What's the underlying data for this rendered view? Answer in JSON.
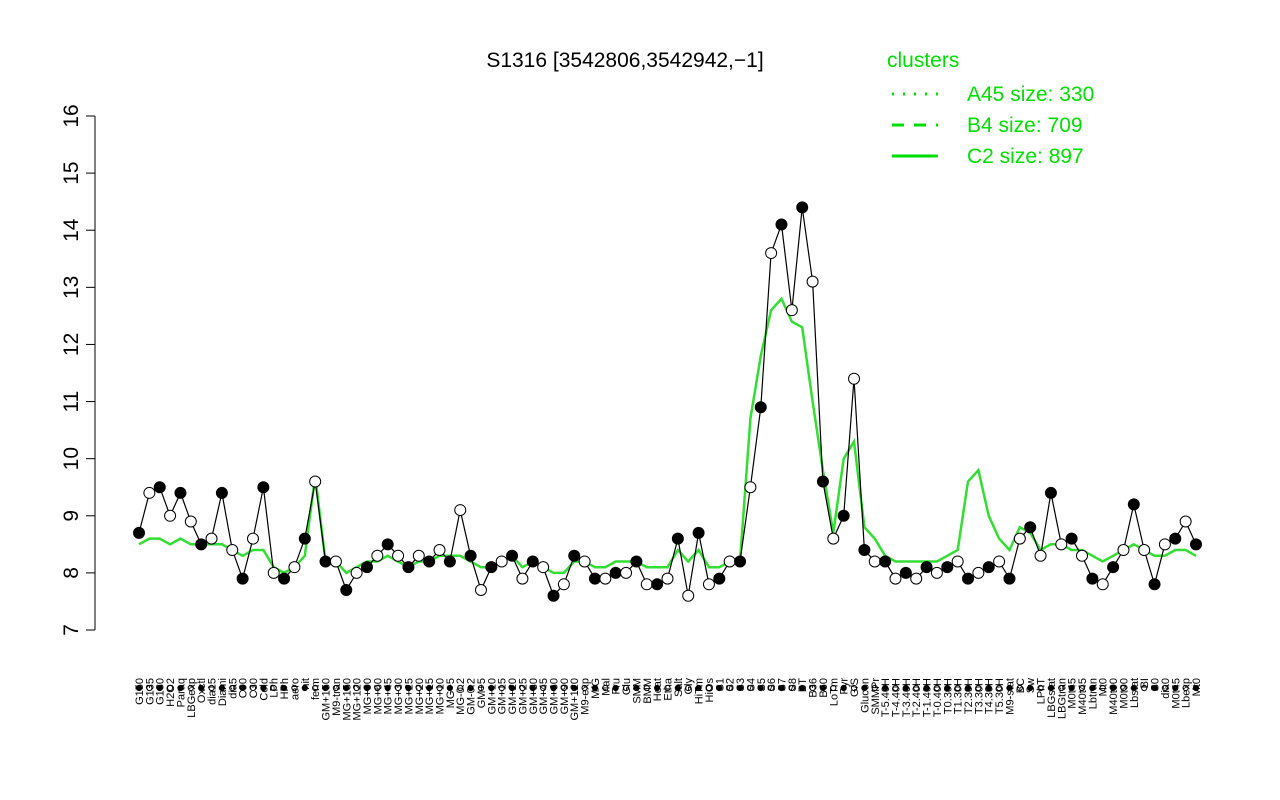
{
  "chart_data": {
    "type": "line",
    "title": "S1316 [3542806,3542942,−1]",
    "xlabel": "",
    "ylabel": "",
    "ylim": [
      7,
      16
    ],
    "y_ticks": [
      7,
      8,
      9,
      10,
      11,
      12,
      13,
      14,
      15,
      16
    ],
    "x_tick_labels": [
      "G150",
      "G135",
      "G180",
      "H2O2",
      "Paraq",
      "LBGexp",
      "Oxctl",
      "dia15",
      "Diami",
      "dia5",
      "C90",
      "C30",
      "Cold",
      "LPh",
      "HPh",
      "aero",
      "nit",
      "ferm",
      "GM+150",
      "M9-tran",
      "MG+150",
      "MG+120",
      "MG+90",
      "MG+60",
      "MG+45",
      "MG+30",
      "MG+25",
      "MG+20",
      "MG+15",
      "MG+10",
      "MG+5",
      "MG-0.2",
      "GM-0.2",
      "GM+5",
      "GM+10",
      "GM+15",
      "GM+20",
      "GM+25",
      "GM+30",
      "GM+45",
      "GM+60",
      "GM+90",
      "GM+120",
      "M9-exp",
      "M/G",
      "Mal",
      "Fru",
      "Glu",
      "SMM",
      "BMM",
      "Heat",
      "Etha",
      "Salt",
      "Gly",
      "HiTm",
      "HiOs",
      "S1",
      "S2",
      "S3",
      "S4",
      "S5",
      "S6",
      "S7",
      "S8",
      "BT",
      "B36",
      "B60",
      "LoTm",
      "Pyr",
      "G/S",
      "Glucon",
      "SMMPr",
      "T-5.40H",
      "T-4.40H",
      "T-3.40H",
      "T-2.40H",
      "T-1.40H",
      "T-0.40H",
      "T0.30H",
      "T1.30H",
      "T2.30H",
      "T3.30H",
      "T4.30H",
      "T5.30H",
      "M9-stat",
      "BC",
      "Sw",
      "LPhT",
      "LBGstat",
      "LBGtran",
      "M0t45",
      "M40t45",
      "Lbtran",
      "Mt0",
      "M40t90",
      "M0t90",
      "Lbstat",
      "BI",
      "S0",
      "dia0",
      "M0t45",
      "Lbexp",
      "Mt0"
    ],
    "legend": {
      "title": "clusters",
      "position": "top-right",
      "color": "#00dd00",
      "entries": [
        {
          "label": "A45 size: 330",
          "style": "dotted"
        },
        {
          "label": "B4 size: 709",
          "style": "dashed"
        },
        {
          "label": "C2 size: 897",
          "style": "solid"
        }
      ]
    },
    "colors": {
      "cluster": "#33dd33",
      "data": "#000000",
      "legend": "#00dd00"
    },
    "series": [
      {
        "name": "S1316",
        "values": [
          8.7,
          9.4,
          9.5,
          9.0,
          9.4,
          8.9,
          8.5,
          8.6,
          9.4,
          8.4,
          7.9,
          8.6,
          9.5,
          8.0,
          7.9,
          8.1,
          8.6,
          9.6,
          8.2,
          8.2,
          7.7,
          8.0,
          8.1,
          8.3,
          8.5,
          8.3,
          8.1,
          8.3,
          8.2,
          8.4,
          8.2,
          9.1,
          8.3,
          7.7,
          8.1,
          8.2,
          8.3,
          7.9,
          8.2,
          8.1,
          7.6,
          7.8,
          8.3,
          8.2,
          7.9,
          7.9,
          8.0,
          8.0,
          8.2,
          7.8,
          7.8,
          7.9,
          8.6,
          7.6,
          8.7,
          7.8,
          7.9,
          8.2,
          8.2,
          9.5,
          10.9,
          13.6,
          14.1,
          12.6,
          14.4,
          13.1,
          9.6,
          8.6,
          9.0,
          11.4,
          8.4,
          8.2,
          8.2,
          7.9,
          8.0,
          7.9,
          8.1,
          8.0,
          8.1,
          8.2,
          7.9,
          8.0,
          8.1,
          8.2,
          7.9,
          8.6,
          8.8,
          8.3,
          9.4,
          8.5,
          8.6,
          8.3,
          7.9,
          7.8,
          8.1,
          8.4,
          9.2,
          8.4,
          7.8,
          8.5,
          8.6,
          8.9,
          8.5
        ]
      },
      {
        "name": "C2 size: 897",
        "values": [
          8.5,
          8.6,
          8.6,
          8.5,
          8.6,
          8.5,
          8.5,
          8.5,
          8.5,
          8.4,
          8.3,
          8.4,
          8.4,
          8.1,
          8.0,
          8.1,
          8.3,
          9.7,
          8.2,
          8.2,
          8.0,
          8.1,
          8.2,
          8.2,
          8.3,
          8.2,
          8.1,
          8.2,
          8.2,
          8.3,
          8.3,
          8.3,
          8.2,
          8.1,
          8.1,
          8.2,
          8.3,
          8.1,
          8.2,
          8.1,
          8.0,
          8.0,
          8.2,
          8.2,
          8.1,
          8.1,
          8.2,
          8.2,
          8.2,
          8.1,
          8.1,
          8.1,
          8.4,
          8.2,
          8.4,
          8.1,
          8.1,
          8.2,
          8.2,
          10.7,
          11.8,
          12.6,
          12.8,
          12.4,
          12.3,
          11.0,
          9.8,
          8.7,
          10.0,
          10.3,
          8.8,
          8.6,
          8.3,
          8.2,
          8.2,
          8.2,
          8.2,
          8.2,
          8.3,
          8.4,
          9.6,
          9.8,
          9.0,
          8.6,
          8.4,
          8.8,
          8.7,
          8.4,
          8.5,
          8.5,
          8.4,
          8.4,
          8.3,
          8.2,
          8.3,
          8.4,
          8.5,
          8.4,
          8.3,
          8.3,
          8.4,
          8.4,
          8.3
        ]
      }
    ]
  }
}
